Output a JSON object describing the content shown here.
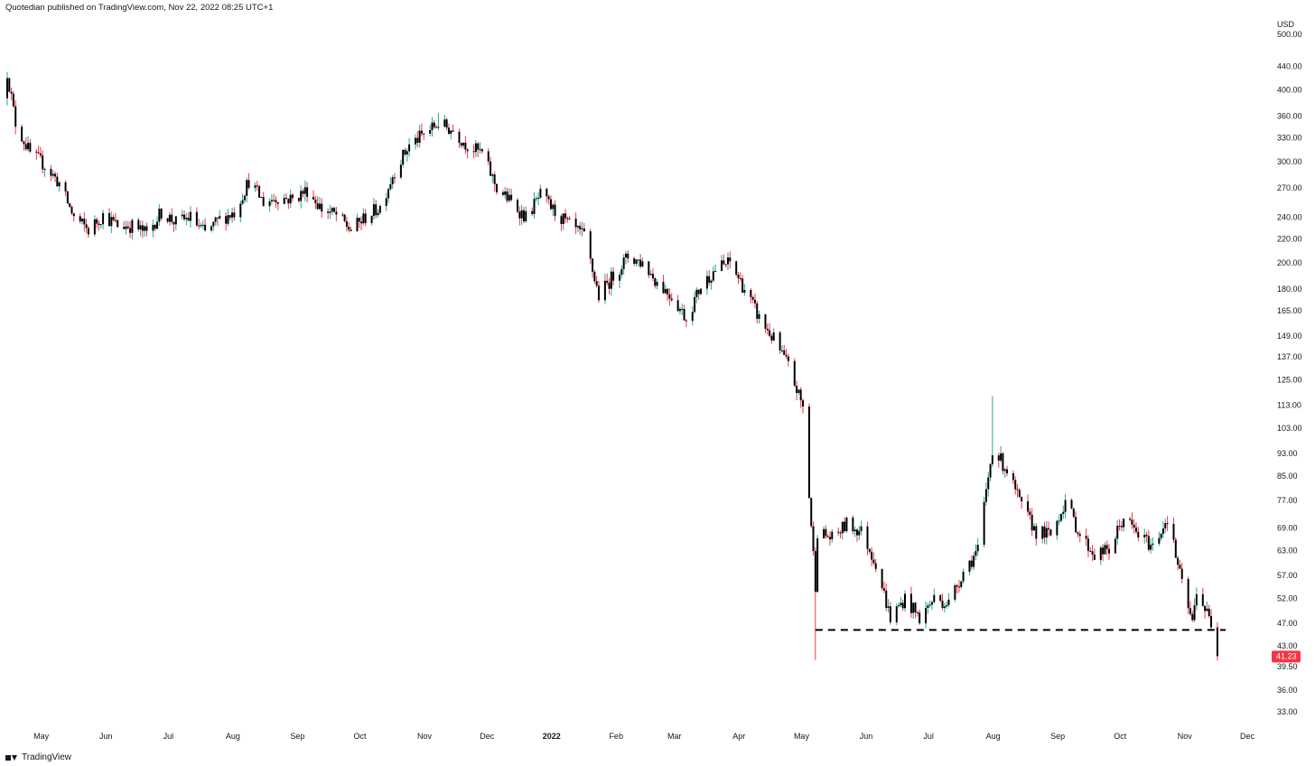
{
  "header": {
    "publish_text": "Quotedian published on TradingView.com, Nov 22, 2022 08:25 UTC+1"
  },
  "footer": {
    "brand": "TradingView",
    "logo_icon": "tradingview-logo-icon"
  },
  "chart_data": {
    "type": "candlestick",
    "title": "",
    "currency_label": "USD",
    "y_scale": "log",
    "ylim": [
      31,
      530
    ],
    "y_ticks": [
      "500.00",
      "440.00",
      "400.00",
      "360.00",
      "330.00",
      "300.00",
      "270.00",
      "240.00",
      "220.00",
      "200.00",
      "180.00",
      "165.00",
      "149.00",
      "137.00",
      "125.00",
      "113.00",
      "103.00",
      "93.00",
      "85.00",
      "77.00",
      "69.00",
      "63.00",
      "57.00",
      "52.00",
      "47.00",
      "43.00",
      "39.50",
      "36.00",
      "33.00"
    ],
    "x_ticks": [
      {
        "label": "May",
        "date": "2021-05-01",
        "bold": false
      },
      {
        "label": "Jun",
        "date": "2021-06-01",
        "bold": false
      },
      {
        "label": "Jul",
        "date": "2021-07-01",
        "bold": false
      },
      {
        "label": "Aug",
        "date": "2021-08-01",
        "bold": false
      },
      {
        "label": "Sep",
        "date": "2021-09-01",
        "bold": false
      },
      {
        "label": "Oct",
        "date": "2021-10-01",
        "bold": false
      },
      {
        "label": "Nov",
        "date": "2021-11-01",
        "bold": false
      },
      {
        "label": "Dec",
        "date": "2021-12-01",
        "bold": false
      },
      {
        "label": "2022",
        "date": "2022-01-01",
        "bold": true
      },
      {
        "label": "Feb",
        "date": "2022-02-01",
        "bold": false
      },
      {
        "label": "Mar",
        "date": "2022-03-01",
        "bold": false
      },
      {
        "label": "Apr",
        "date": "2022-04-01",
        "bold": false
      },
      {
        "label": "May",
        "date": "2022-05-01",
        "bold": false
      },
      {
        "label": "Jun",
        "date": "2022-06-01",
        "bold": false
      },
      {
        "label": "Jul",
        "date": "2022-07-01",
        "bold": false
      },
      {
        "label": "Aug",
        "date": "2022-08-01",
        "bold": false
      },
      {
        "label": "Sep",
        "date": "2022-09-01",
        "bold": false
      },
      {
        "label": "Oct",
        "date": "2022-10-01",
        "bold": false
      },
      {
        "label": "Nov",
        "date": "2022-11-01",
        "bold": false
      },
      {
        "label": "Dec",
        "date": "2022-12-01",
        "bold": false
      }
    ],
    "last_price": {
      "label": "41.23",
      "value": 41.23,
      "color": "#f23645"
    },
    "support_line": {
      "value": 45.8,
      "from_date": "2022-05-12",
      "to_date": "2022-11-25",
      "style": "dashed",
      "color": "#000000"
    },
    "colors": {
      "up": "#26a69a",
      "down": "#f23645",
      "body": "#000000",
      "grid": "none",
      "text": "#131722"
    },
    "grid": false,
    "price_path_weekly": [
      [
        "2021-04-19",
        430
      ],
      [
        "2021-04-23",
        350
      ],
      [
        "2021-04-30",
        310
      ],
      [
        "2021-05-07",
        296
      ],
      [
        "2021-05-14",
        275
      ],
      [
        "2021-05-21",
        240
      ],
      [
        "2021-05-28",
        228
      ],
      [
        "2021-06-04",
        242
      ],
      [
        "2021-06-11",
        232
      ],
      [
        "2021-06-18",
        232
      ],
      [
        "2021-06-25",
        225
      ],
      [
        "2021-07-02",
        245
      ],
      [
        "2021-07-09",
        235
      ],
      [
        "2021-07-16",
        240
      ],
      [
        "2021-07-23",
        225
      ],
      [
        "2021-07-30",
        238
      ],
      [
        "2021-08-06",
        245
      ],
      [
        "2021-08-13",
        278
      ],
      [
        "2021-08-20",
        255
      ],
      [
        "2021-08-27",
        260
      ],
      [
        "2021-09-03",
        258
      ],
      [
        "2021-09-10",
        268
      ],
      [
        "2021-09-17",
        248
      ],
      [
        "2021-09-24",
        242
      ],
      [
        "2021-10-01",
        228
      ],
      [
        "2021-10-08",
        240
      ],
      [
        "2021-10-15",
        250
      ],
      [
        "2021-10-22",
        290
      ],
      [
        "2021-10-29",
        320
      ],
      [
        "2021-11-05",
        335
      ],
      [
        "2021-11-12",
        350
      ],
      [
        "2021-11-19",
        340
      ],
      [
        "2021-11-26",
        320
      ],
      [
        "2021-12-03",
        310
      ],
      [
        "2021-12-10",
        270
      ],
      [
        "2021-12-17",
        255
      ],
      [
        "2021-12-24",
        240
      ],
      [
        "2021-12-31",
        262
      ],
      [
        "2022-01-07",
        245
      ],
      [
        "2022-01-14",
        232
      ],
      [
        "2022-01-21",
        222
      ],
      [
        "2022-01-28",
        175
      ],
      [
        "2022-02-04",
        190
      ],
      [
        "2022-02-11",
        205
      ],
      [
        "2022-02-18",
        200
      ],
      [
        "2022-02-25",
        185
      ],
      [
        "2022-03-04",
        175
      ],
      [
        "2022-03-11",
        160
      ],
      [
        "2022-03-18",
        182
      ],
      [
        "2022-03-25",
        195
      ],
      [
        "2022-04-01",
        200
      ],
      [
        "2022-04-08",
        180
      ],
      [
        "2022-04-15",
        160
      ],
      [
        "2022-04-22",
        147
      ],
      [
        "2022-04-29",
        132
      ],
      [
        "2022-05-06",
        112
      ],
      [
        "2022-05-12",
        55
      ],
      [
        "2022-05-13",
        68
      ],
      [
        "2022-05-20",
        66
      ],
      [
        "2022-05-27",
        70
      ],
      [
        "2022-06-03",
        68
      ],
      [
        "2022-06-10",
        60
      ],
      [
        "2022-06-17",
        48
      ],
      [
        "2022-06-24",
        52
      ],
      [
        "2022-07-01",
        48
      ],
      [
        "2022-07-08",
        52
      ],
      [
        "2022-07-15",
        51
      ],
      [
        "2022-07-22",
        58
      ],
      [
        "2022-07-29",
        63
      ],
      [
        "2022-08-05",
        95
      ],
      [
        "2022-08-12",
        87
      ],
      [
        "2022-08-19",
        75
      ],
      [
        "2022-08-26",
        68
      ],
      [
        "2022-09-02",
        67
      ],
      [
        "2022-09-09",
        77
      ],
      [
        "2022-09-16",
        67
      ],
      [
        "2022-09-23",
        62
      ],
      [
        "2022-09-30",
        63
      ],
      [
        "2022-10-07",
        72
      ],
      [
        "2022-10-14",
        67
      ],
      [
        "2022-10-21",
        64
      ],
      [
        "2022-10-28",
        72
      ],
      [
        "2022-11-04",
        55
      ],
      [
        "2022-11-09",
        47
      ],
      [
        "2022-11-11",
        54
      ],
      [
        "2022-11-18",
        47
      ],
      [
        "2022-11-21",
        41.23
      ]
    ],
    "notable_extremes": [
      {
        "date": "2021-04-19",
        "type": "high",
        "value": 430
      },
      {
        "date": "2021-11-12",
        "type": "high",
        "value": 365
      },
      {
        "date": "2022-05-12",
        "type": "low",
        "value": 40.6
      },
      {
        "date": "2022-08-05",
        "type": "high",
        "value": 117
      },
      {
        "date": "2022-11-21",
        "type": "low",
        "value": 40.5
      }
    ]
  }
}
